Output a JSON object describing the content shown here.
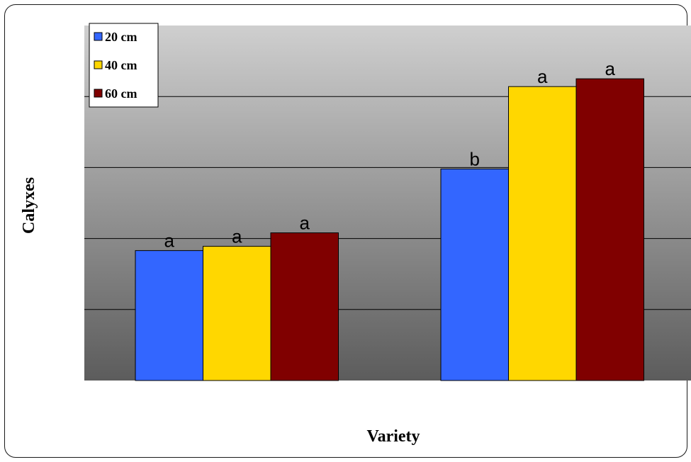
{
  "chart_data": {
    "type": "bar",
    "title": "",
    "xlabel": "Variety",
    "ylabel": "Calyxes",
    "categories": [
      "",
      ""
    ],
    "ylim": [
      0,
      5
    ],
    "grid": true,
    "legend_position": "top-left",
    "series": [
      {
        "name": "20 cm",
        "color": "#3366FF",
        "values": [
          1.83,
          2.98
        ],
        "labels": [
          "a",
          "b"
        ]
      },
      {
        "name": "40 cm",
        "color": "#FFD700",
        "values": [
          1.89,
          4.14
        ],
        "labels": [
          "a",
          "a"
        ]
      },
      {
        "name": "60 cm",
        "color": "#800000",
        "values": [
          2.08,
          4.25
        ],
        "labels": [
          "a",
          "a"
        ]
      }
    ]
  }
}
